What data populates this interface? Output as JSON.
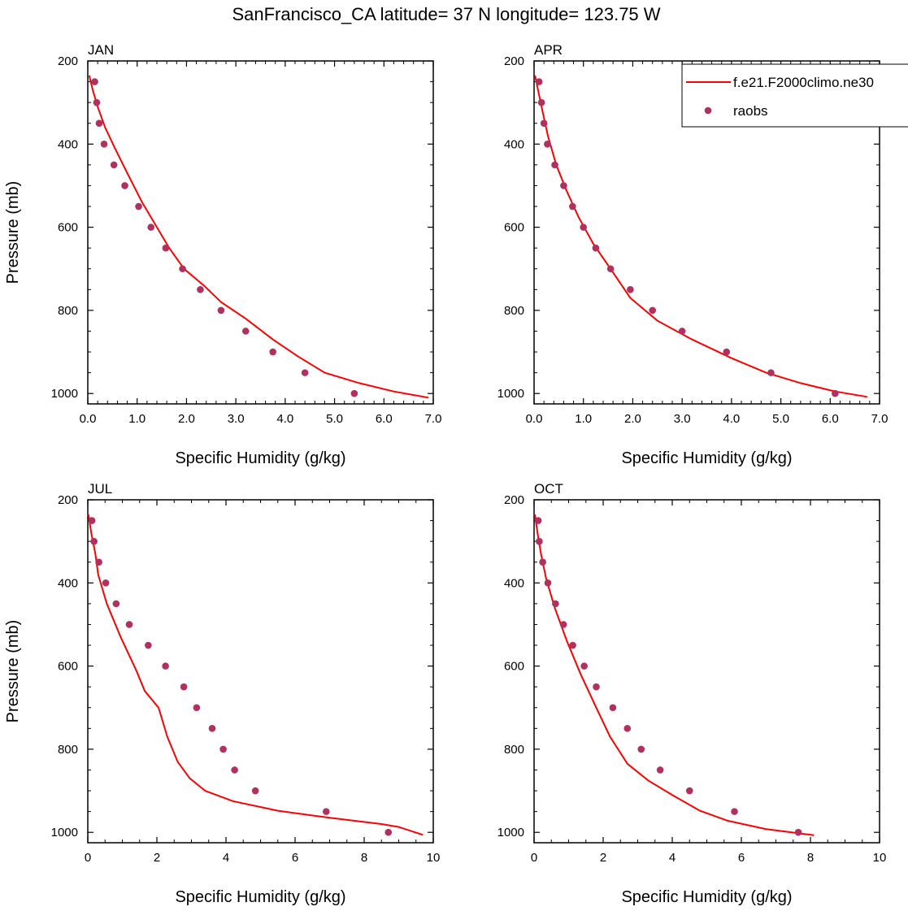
{
  "figure_title": "SanFrancisco_CA  latitude= 37 N longitude= 123.75 W",
  "legend": {
    "model_label": "f.e21.F2000climo.ne30",
    "obs_label": "raobs",
    "model_color": "#ff0000",
    "obs_color": "#b03060"
  },
  "chart_data": [
    {
      "type": "line",
      "title": "JAN",
      "xlabel": "Specific Humidity (g/kg)",
      "ylabel": "Pressure (mb)",
      "xlim": [
        0,
        7
      ],
      "ylim": [
        200,
        1025
      ],
      "y_reversed": true,
      "x_ticks": [
        "0.0",
        "1.0",
        "2.0",
        "3.0",
        "4.0",
        "5.0",
        "6.0",
        "7.0"
      ],
      "y_ticks": [
        "200",
        "400",
        "600",
        "800",
        "1000"
      ],
      "series": [
        {
          "name": "f.e21.F2000climo.ne30",
          "style": "line",
          "color": "#ff0000",
          "points": [
            [
              0.03,
              235
            ],
            [
              0.1,
              270
            ],
            [
              0.2,
              310
            ],
            [
              0.35,
              360
            ],
            [
              0.55,
              410
            ],
            [
              0.8,
              470
            ],
            [
              1.1,
              540
            ],
            [
              1.4,
              600
            ],
            [
              1.65,
              650
            ],
            [
              1.95,
              700
            ],
            [
              2.35,
              740
            ],
            [
              2.7,
              780
            ],
            [
              3.2,
              820
            ],
            [
              3.75,
              870
            ],
            [
              4.25,
              910
            ],
            [
              4.8,
              950
            ],
            [
              5.5,
              975
            ],
            [
              6.2,
              995
            ],
            [
              6.9,
              1010
            ]
          ]
        },
        {
          "name": "raobs",
          "style": "markers",
          "color": "#b03060",
          "points": [
            [
              0.14,
              250
            ],
            [
              0.18,
              300
            ],
            [
              0.23,
              350
            ],
            [
              0.33,
              400
            ],
            [
              0.53,
              450
            ],
            [
              0.75,
              500
            ],
            [
              1.03,
              550
            ],
            [
              1.28,
              600
            ],
            [
              1.58,
              650
            ],
            [
              1.92,
              700
            ],
            [
              2.28,
              750
            ],
            [
              2.7,
              800
            ],
            [
              3.2,
              850
            ],
            [
              3.75,
              900
            ],
            [
              4.4,
              950
            ],
            [
              5.4,
              1000
            ]
          ]
        }
      ]
    },
    {
      "type": "line",
      "title": "APR",
      "xlabel": "Specific Humidity (g/kg)",
      "ylabel": "",
      "xlim": [
        0,
        7
      ],
      "ylim": [
        200,
        1025
      ],
      "y_reversed": true,
      "x_ticks": [
        "0.0",
        "1.0",
        "2.0",
        "3.0",
        "4.0",
        "5.0",
        "6.0",
        "7.0"
      ],
      "y_ticks": [
        "200",
        "400",
        "600",
        "800",
        "1000"
      ],
      "series": [
        {
          "name": "f.e21.F2000climo.ne30",
          "style": "line",
          "color": "#ff0000",
          "points": [
            [
              0.02,
              235
            ],
            [
              0.08,
              270
            ],
            [
              0.17,
              320
            ],
            [
              0.28,
              380
            ],
            [
              0.45,
              450
            ],
            [
              0.65,
              510
            ],
            [
              0.9,
              575
            ],
            [
              1.2,
              640
            ],
            [
              1.55,
              700
            ],
            [
              1.95,
              770
            ],
            [
              2.5,
              825
            ],
            [
              3.2,
              870
            ],
            [
              4.0,
              915
            ],
            [
              4.7,
              950
            ],
            [
              5.4,
              975
            ],
            [
              6.1,
              995
            ],
            [
              6.75,
              1008
            ]
          ]
        },
        {
          "name": "raobs",
          "style": "markers",
          "color": "#b03060",
          "points": [
            [
              0.1,
              250
            ],
            [
              0.15,
              300
            ],
            [
              0.2,
              350
            ],
            [
              0.27,
              400
            ],
            [
              0.42,
              450
            ],
            [
              0.6,
              500
            ],
            [
              0.78,
              550
            ],
            [
              1.0,
              600
            ],
            [
              1.25,
              650
            ],
            [
              1.55,
              700
            ],
            [
              1.95,
              750
            ],
            [
              2.4,
              800
            ],
            [
              3.0,
              850
            ],
            [
              3.9,
              900
            ],
            [
              4.8,
              950
            ],
            [
              6.1,
              1000
            ]
          ]
        }
      ]
    },
    {
      "type": "line",
      "title": "JUL",
      "xlabel": "Specific Humidity (g/kg)",
      "ylabel": "Pressure (mb)",
      "xlim": [
        0,
        10
      ],
      "ylim": [
        200,
        1025
      ],
      "y_reversed": true,
      "x_ticks": [
        "0",
        "2",
        "4",
        "6",
        "8",
        "10"
      ],
      "y_ticks": [
        "200",
        "400",
        "600",
        "800",
        "1000"
      ],
      "series": [
        {
          "name": "f.e21.F2000climo.ne30",
          "style": "line",
          "color": "#ff0000",
          "points": [
            [
              0.02,
              235
            ],
            [
              0.1,
              280
            ],
            [
              0.22,
              330
            ],
            [
              0.3,
              380
            ],
            [
              0.55,
              450
            ],
            [
              0.95,
              530
            ],
            [
              1.4,
              610
            ],
            [
              1.65,
              660
            ],
            [
              2.05,
              700
            ],
            [
              2.3,
              770
            ],
            [
              2.6,
              830
            ],
            [
              2.95,
              870
            ],
            [
              3.4,
              900
            ],
            [
              4.2,
              925
            ],
            [
              5.5,
              948
            ],
            [
              7.0,
              965
            ],
            [
              8.5,
              980
            ],
            [
              9.0,
              987
            ],
            [
              9.7,
              1006
            ]
          ]
        },
        {
          "name": "raobs",
          "style": "markers",
          "color": "#b03060",
          "points": [
            [
              0.12,
              250
            ],
            [
              0.18,
              300
            ],
            [
              0.32,
              350
            ],
            [
              0.52,
              400
            ],
            [
              0.82,
              450
            ],
            [
              1.2,
              500
            ],
            [
              1.75,
              550
            ],
            [
              2.25,
              600
            ],
            [
              2.78,
              650
            ],
            [
              3.15,
              700
            ],
            [
              3.6,
              750
            ],
            [
              3.92,
              800
            ],
            [
              4.25,
              850
            ],
            [
              4.85,
              900
            ],
            [
              6.9,
              950
            ],
            [
              8.7,
              1000
            ]
          ]
        }
      ]
    },
    {
      "type": "line",
      "title": "OCT",
      "xlabel": "Specific Humidity (g/kg)",
      "ylabel": "",
      "xlim": [
        0,
        10
      ],
      "ylim": [
        200,
        1025
      ],
      "y_reversed": true,
      "x_ticks": [
        "0",
        "2",
        "4",
        "6",
        "8",
        "10"
      ],
      "y_ticks": [
        "200",
        "400",
        "600",
        "800",
        "1000"
      ],
      "series": [
        {
          "name": "f.e21.F2000climo.ne30",
          "style": "line",
          "color": "#ff0000",
          "points": [
            [
              0.02,
              235
            ],
            [
              0.1,
              280
            ],
            [
              0.2,
              330
            ],
            [
              0.35,
              390
            ],
            [
              0.6,
              460
            ],
            [
              0.95,
              540
            ],
            [
              1.35,
              620
            ],
            [
              1.8,
              700
            ],
            [
              2.2,
              770
            ],
            [
              2.7,
              835
            ],
            [
              3.3,
              875
            ],
            [
              4.0,
              910
            ],
            [
              4.8,
              948
            ],
            [
              5.6,
              972
            ],
            [
              6.7,
              992
            ],
            [
              8.1,
              1007
            ]
          ]
        },
        {
          "name": "raobs",
          "style": "markers",
          "color": "#b03060",
          "points": [
            [
              0.12,
              250
            ],
            [
              0.15,
              300
            ],
            [
              0.25,
              350
            ],
            [
              0.4,
              400
            ],
            [
              0.62,
              450
            ],
            [
              0.85,
              500
            ],
            [
              1.12,
              550
            ],
            [
              1.45,
              600
            ],
            [
              1.8,
              650
            ],
            [
              2.28,
              700
            ],
            [
              2.7,
              750
            ],
            [
              3.1,
              800
            ],
            [
              3.65,
              850
            ],
            [
              4.5,
              900
            ],
            [
              5.8,
              950
            ],
            [
              7.65,
              1000
            ]
          ]
        }
      ]
    }
  ]
}
